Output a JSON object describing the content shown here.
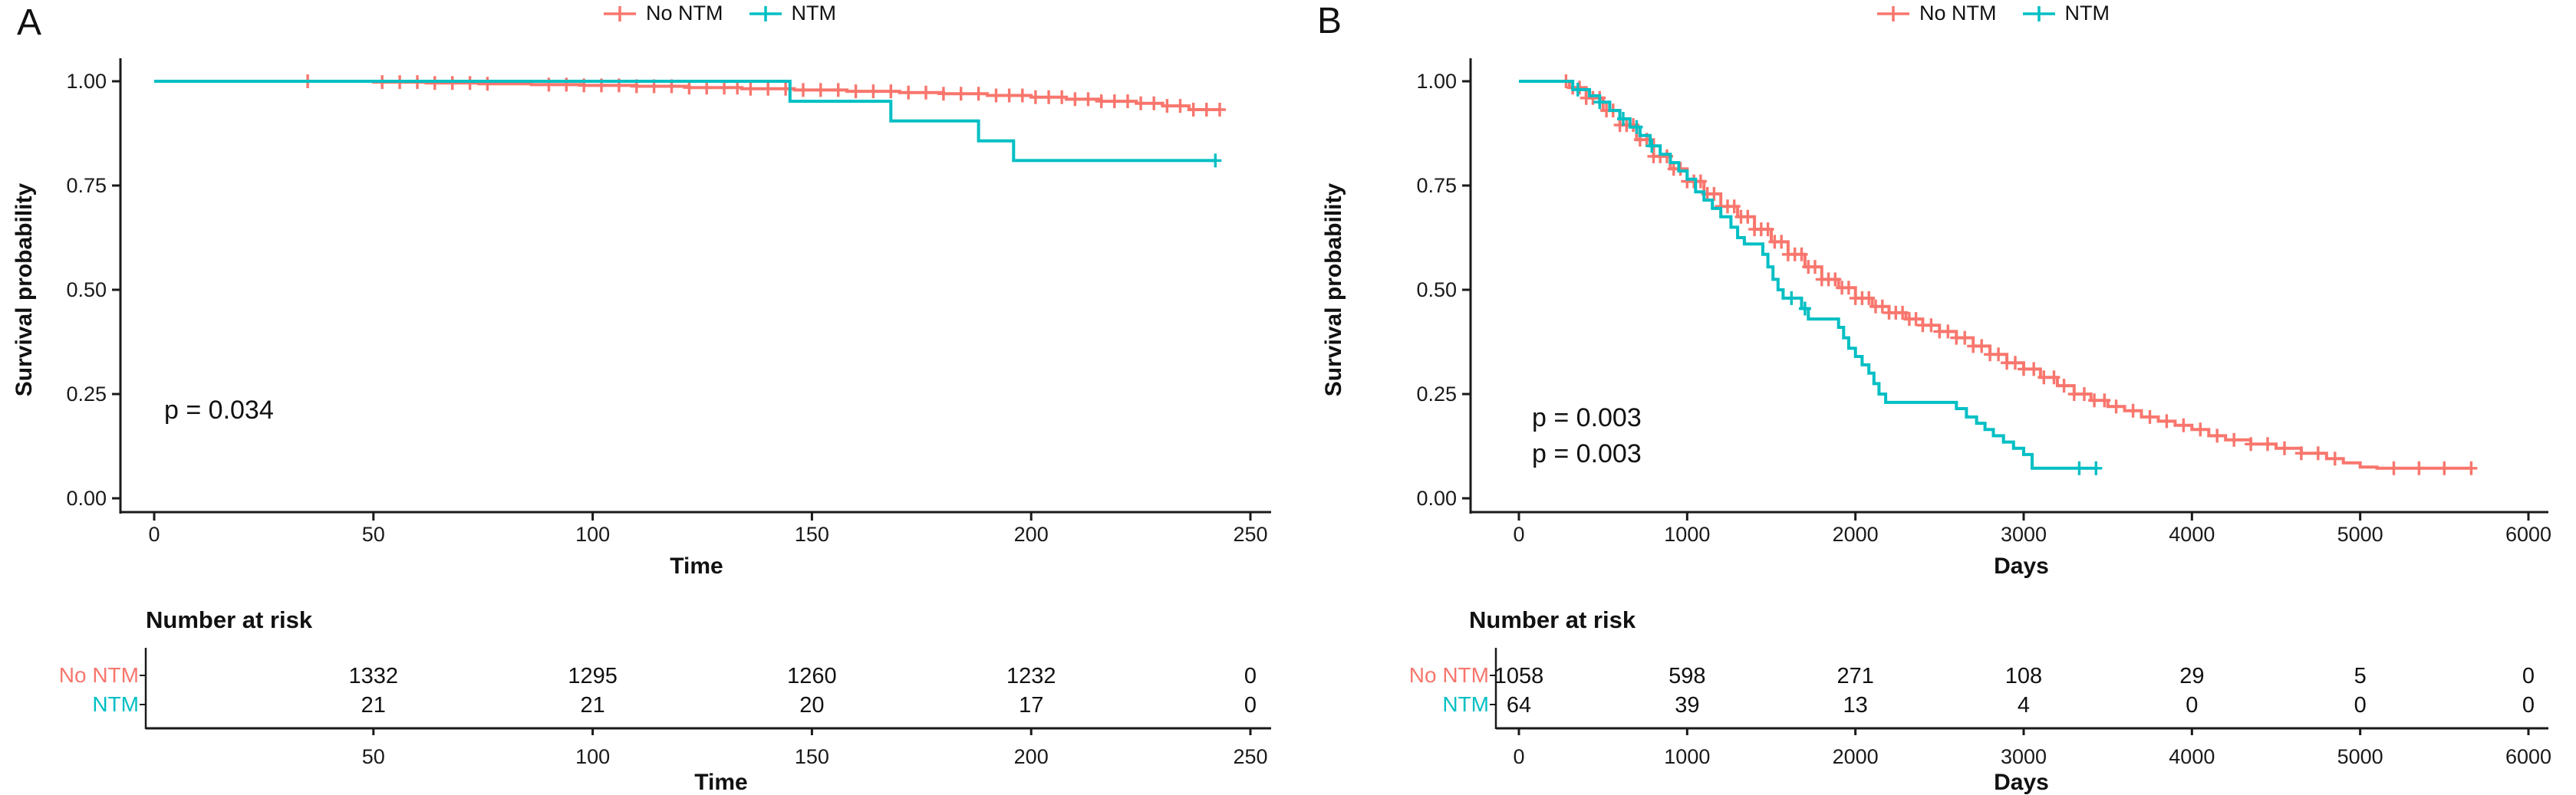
{
  "figure": {
    "background": "#ffffff",
    "axis_color": "#1a1a1a"
  },
  "chart_data": [
    {
      "type": "line",
      "subtype": "kaplan-meier",
      "panel_label": "A",
      "title": "",
      "ylabel": "Survival probability",
      "xlabel": "Time",
      "pvalues": [
        "p = 0.034"
      ],
      "xlim": [
        0,
        250
      ],
      "ylim": [
        0,
        1
      ],
      "x_ticks": [
        0,
        50,
        100,
        150,
        200,
        250
      ],
      "y_ticks": [
        "1.00",
        "0.75",
        "0.50",
        "0.25",
        "0.00"
      ],
      "legend_position": "top",
      "grid": false,
      "series": [
        {
          "name": "No NTM",
          "color": "#F8766D",
          "steps": [
            [
              0,
              1.0
            ],
            [
              50,
              0.998
            ],
            [
              62,
              0.996
            ],
            [
              74,
              0.994
            ],
            [
              86,
              0.992
            ],
            [
              98,
              0.99
            ],
            [
              110,
              0.988
            ],
            [
              122,
              0.985
            ],
            [
              134,
              0.982
            ],
            [
              146,
              0.979
            ],
            [
              158,
              0.976
            ],
            [
              170,
              0.973
            ],
            [
              180,
              0.97
            ],
            [
              190,
              0.966
            ],
            [
              200,
              0.962
            ],
            [
              208,
              0.957
            ],
            [
              216,
              0.952
            ],
            [
              224,
              0.947
            ],
            [
              230,
              0.941
            ],
            [
              236,
              0.932
            ]
          ],
          "end_time": 243,
          "censor_times": [
            35,
            52,
            56,
            60,
            64,
            68,
            72,
            76,
            90,
            94,
            98,
            102,
            106,
            110,
            114,
            118,
            122,
            126,
            130,
            133,
            136,
            140,
            144,
            148,
            152,
            156,
            160,
            164,
            168,
            172,
            176,
            180,
            184,
            188,
            192,
            195,
            198,
            201,
            204,
            207,
            210,
            213,
            216,
            219,
            222,
            225,
            228,
            231,
            234,
            237,
            240,
            243
          ]
        },
        {
          "name": "NTM",
          "color": "#00BFC4",
          "steps": [
            [
              0,
              1.0
            ],
            [
              145,
              0.952
            ],
            [
              168,
              0.905
            ],
            [
              188,
              0.857
            ],
            [
              196,
              0.81
            ]
          ],
          "end_time": 242,
          "censor_times": [
            242
          ]
        }
      ],
      "risk_table": {
        "title": "Number at risk",
        "xlabel": "Time",
        "time_points": [
          50,
          100,
          150,
          200,
          250
        ],
        "rows": [
          {
            "name": "No NTM",
            "color": "#F8766D",
            "counts": [
              1332,
              1295,
              1260,
              1232,
              0
            ]
          },
          {
            "name": "NTM",
            "color": "#00BFC4",
            "counts": [
              21,
              21,
              20,
              17,
              0
            ]
          }
        ]
      }
    },
    {
      "type": "line",
      "subtype": "kaplan-meier",
      "panel_label": "B",
      "title": "",
      "ylabel": "Survival probability",
      "xlabel": "Days",
      "pvalues": [
        "p = 0.003",
        "p = 0.003"
      ],
      "xlim": [
        0,
        6000
      ],
      "ylim": [
        0,
        1
      ],
      "x_ticks": [
        0,
        1000,
        2000,
        3000,
        4000,
        5000,
        6000
      ],
      "y_ticks": [
        "1.00",
        "0.75",
        "0.50",
        "0.25",
        "0.00"
      ],
      "legend_position": "top",
      "grid": false,
      "series": [
        {
          "name": "No NTM",
          "color": "#F8766D",
          "steps": [
            [
              0,
              1.0
            ],
            [
              260,
              1.0
            ],
            [
              300,
              0.985
            ],
            [
              400,
              0.96
            ],
            [
              500,
              0.93
            ],
            [
              600,
              0.895
            ],
            [
              700,
              0.86
            ],
            [
              800,
              0.82
            ],
            [
              900,
              0.79
            ],
            [
              1000,
              0.76
            ],
            [
              1100,
              0.73
            ],
            [
              1200,
              0.7
            ],
            [
              1300,
              0.675
            ],
            [
              1400,
              0.645
            ],
            [
              1500,
              0.615
            ],
            [
              1600,
              0.585
            ],
            [
              1700,
              0.555
            ],
            [
              1800,
              0.525
            ],
            [
              1900,
              0.505
            ],
            [
              2000,
              0.48
            ],
            [
              2100,
              0.46
            ],
            [
              2200,
              0.445
            ],
            [
              2300,
              0.43
            ],
            [
              2400,
              0.415
            ],
            [
              2500,
              0.4
            ],
            [
              2600,
              0.385
            ],
            [
              2700,
              0.365
            ],
            [
              2800,
              0.345
            ],
            [
              2900,
              0.325
            ],
            [
              3000,
              0.31
            ],
            [
              3100,
              0.29
            ],
            [
              3200,
              0.27
            ],
            [
              3300,
              0.25
            ],
            [
              3400,
              0.235
            ],
            [
              3500,
              0.22
            ],
            [
              3600,
              0.21
            ],
            [
              3700,
              0.195
            ],
            [
              3800,
              0.185
            ],
            [
              3900,
              0.175
            ],
            [
              4000,
              0.165
            ],
            [
              4100,
              0.15
            ],
            [
              4200,
              0.14
            ],
            [
              4350,
              0.13
            ],
            [
              4500,
              0.12
            ],
            [
              4650,
              0.108
            ],
            [
              4800,
              0.095
            ],
            [
              4900,
              0.085
            ],
            [
              5000,
              0.075
            ],
            [
              5100,
              0.072
            ]
          ],
          "end_time": 5660,
          "censor_times": [
            280,
            320,
            360,
            400,
            440,
            480,
            520,
            560,
            600,
            640,
            680,
            720,
            760,
            800,
            840,
            880,
            920,
            960,
            1000,
            1040,
            1080,
            1120,
            1160,
            1200,
            1240,
            1280,
            1320,
            1360,
            1400,
            1440,
            1480,
            1520,
            1560,
            1600,
            1640,
            1680,
            1720,
            1760,
            1800,
            1840,
            1880,
            1920,
            1960,
            2000,
            2040,
            2080,
            2120,
            2160,
            2200,
            2240,
            2280,
            2320,
            2360,
            2400,
            2450,
            2500,
            2550,
            2600,
            2650,
            2700,
            2750,
            2800,
            2850,
            2900,
            2950,
            3000,
            3060,
            3120,
            3180,
            3240,
            3300,
            3360,
            3420,
            3480,
            3550,
            3650,
            3750,
            3850,
            3950,
            4050,
            4150,
            4250,
            4350,
            4450,
            4550,
            4650,
            4750,
            4850,
            5200,
            5350,
            5500,
            5660
          ]
        },
        {
          "name": "NTM",
          "color": "#00BFC4",
          "steps": [
            [
              0,
              1.0
            ],
            [
              270,
              1.0
            ],
            [
              320,
              0.98
            ],
            [
              420,
              0.965
            ],
            [
              480,
              0.95
            ],
            [
              540,
              0.93
            ],
            [
              600,
              0.91
            ],
            [
              660,
              0.89
            ],
            [
              720,
              0.87
            ],
            [
              780,
              0.845
            ],
            [
              840,
              0.825
            ],
            [
              900,
              0.805
            ],
            [
              950,
              0.785
            ],
            [
              1000,
              0.765
            ],
            [
              1050,
              0.735
            ],
            [
              1100,
              0.715
            ],
            [
              1150,
              0.695
            ],
            [
              1200,
              0.675
            ],
            [
              1260,
              0.65
            ],
            [
              1300,
              0.625
            ],
            [
              1340,
              0.61
            ],
            [
              1450,
              0.585
            ],
            [
              1480,
              0.555
            ],
            [
              1510,
              0.525
            ],
            [
              1540,
              0.5
            ],
            [
              1570,
              0.48
            ],
            [
              1680,
              0.455
            ],
            [
              1720,
              0.43
            ],
            [
              1900,
              0.41
            ],
            [
              1930,
              0.385
            ],
            [
              1960,
              0.36
            ],
            [
              2000,
              0.34
            ],
            [
              2040,
              0.32
            ],
            [
              2080,
              0.3
            ],
            [
              2110,
              0.275
            ],
            [
              2140,
              0.25
            ],
            [
              2180,
              0.23
            ],
            [
              2600,
              0.215
            ],
            [
              2660,
              0.195
            ],
            [
              2720,
              0.18
            ],
            [
              2770,
              0.165
            ],
            [
              2820,
              0.15
            ],
            [
              2880,
              0.135
            ],
            [
              2940,
              0.12
            ],
            [
              3000,
              0.105
            ],
            [
              3050,
              0.072
            ]
          ],
          "end_time": 3430,
          "censor_times": [
            350,
            480,
            620,
            700,
            790,
            1620,
            1700,
            3330,
            3430
          ]
        }
      ],
      "risk_table": {
        "title": "Number at risk",
        "xlabel": "Days",
        "time_points": [
          0,
          1000,
          2000,
          3000,
          4000,
          5000,
          6000
        ],
        "rows": [
          {
            "name": "No NTM",
            "color": "#F8766D",
            "counts": [
              1058,
              598,
              271,
              108,
              29,
              5,
              0
            ]
          },
          {
            "name": "NTM",
            "color": "#00BFC4",
            "counts": [
              64,
              39,
              13,
              4,
              0,
              0,
              0
            ]
          }
        ]
      }
    }
  ]
}
